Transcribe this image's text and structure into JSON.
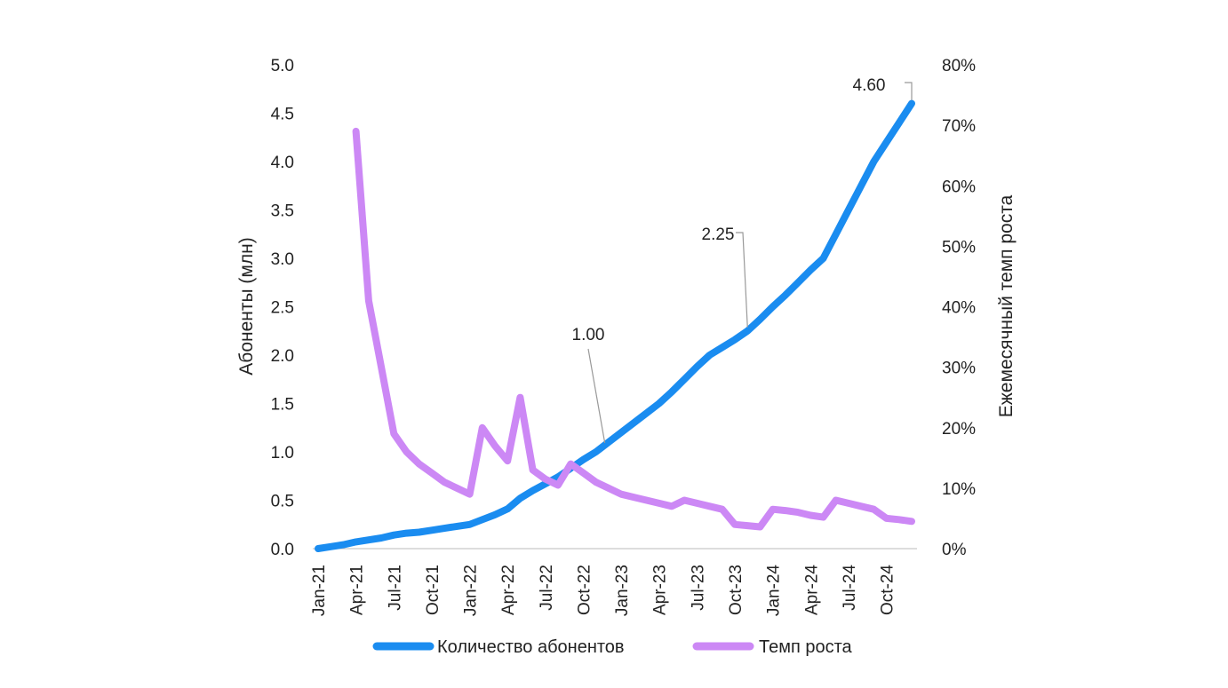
{
  "chart_data": {
    "type": "line",
    "left_axis_title": "Абоненты (млн)",
    "right_axis_title": "Ежемесячный темп роста",
    "left_ticks": [
      "0.0",
      "0.5",
      "1.0",
      "1.5",
      "2.0",
      "2.5",
      "3.0",
      "3.5",
      "4.0",
      "4.5",
      "5.0"
    ],
    "right_ticks": [
      "0%",
      "10%",
      "20%",
      "30%",
      "40%",
      "50%",
      "60%",
      "70%",
      "80%"
    ],
    "ylim_left": [
      0,
      5
    ],
    "ylim_right": [
      0,
      80
    ],
    "x_tick_labels": [
      "Jan-21",
      "Apr-21",
      "Jul-21",
      "Oct-21",
      "Jan-22",
      "Apr-22",
      "Jul-22",
      "Oct-22",
      "Jan-23",
      "Apr-23",
      "Jul-23",
      "Oct-23",
      "Jan-24",
      "Apr-24",
      "Jul-24",
      "Oct-24"
    ],
    "x_tick_index": [
      0,
      3,
      6,
      9,
      12,
      15,
      18,
      21,
      24,
      27,
      30,
      33,
      36,
      39,
      42,
      45
    ],
    "months": [
      "Jan-21",
      "Feb-21",
      "Mar-21",
      "Apr-21",
      "May-21",
      "Jun-21",
      "Jul-21",
      "Aug-21",
      "Sep-21",
      "Oct-21",
      "Nov-21",
      "Dec-21",
      "Jan-22",
      "Feb-22",
      "Mar-22",
      "Apr-22",
      "May-22",
      "Jun-22",
      "Jul-22",
      "Aug-22",
      "Sep-22",
      "Oct-22",
      "Nov-22",
      "Dec-22",
      "Jan-23",
      "Feb-23",
      "Mar-23",
      "Apr-23",
      "May-23",
      "Jun-23",
      "Jul-23",
      "Aug-23",
      "Sep-23",
      "Oct-23",
      "Nov-23",
      "Dec-23",
      "Jan-24",
      "Feb-24",
      "Mar-24",
      "Apr-24",
      "May-24",
      "Jun-24",
      "Jul-24",
      "Aug-24",
      "Sep-24",
      "Oct-24",
      "Nov-24",
      "Dec-24"
    ],
    "legend_position": "bottom",
    "series": [
      {
        "name": "Количество абонентов",
        "axis": "left",
        "color": "#1a8cf0",
        "values": [
          0.0,
          0.02,
          0.04,
          0.07,
          0.09,
          0.11,
          0.14,
          0.16,
          0.17,
          0.19,
          0.21,
          0.23,
          0.25,
          0.3,
          0.35,
          0.41,
          0.52,
          0.6,
          0.67,
          0.74,
          0.83,
          0.92,
          1.0,
          1.1,
          1.2,
          1.3,
          1.4,
          1.5,
          1.62,
          1.75,
          1.88,
          2.0,
          2.08,
          2.16,
          2.25,
          2.37,
          2.5,
          2.62,
          2.75,
          2.88,
          3.0,
          3.25,
          3.5,
          3.75,
          4.0,
          4.2,
          4.4,
          4.6
        ]
      },
      {
        "name": "Темп роста",
        "axis": "right",
        "color": "#cc88f5",
        "values": [
          null,
          null,
          null,
          69,
          41,
          30,
          19,
          16,
          14,
          12.5,
          11,
          10,
          9,
          20,
          17,
          14.5,
          25,
          13,
          11.5,
          10.5,
          14,
          12.5,
          11,
          10,
          9,
          8.5,
          8,
          7.5,
          7,
          8,
          7.5,
          7,
          6.5,
          4,
          3.8,
          3.6,
          6.5,
          6.3,
          6,
          5.5,
          5.2,
          8,
          7.5,
          7,
          6.5,
          5,
          4.8,
          4.5
        ]
      }
    ],
    "annotations": [
      {
        "label": "1.00",
        "month_index": 22,
        "value": 1.0
      },
      {
        "label": "2.25",
        "month_index": 34,
        "value": 2.25
      },
      {
        "label": "4.60",
        "month_index": 47,
        "value": 4.6
      }
    ]
  }
}
